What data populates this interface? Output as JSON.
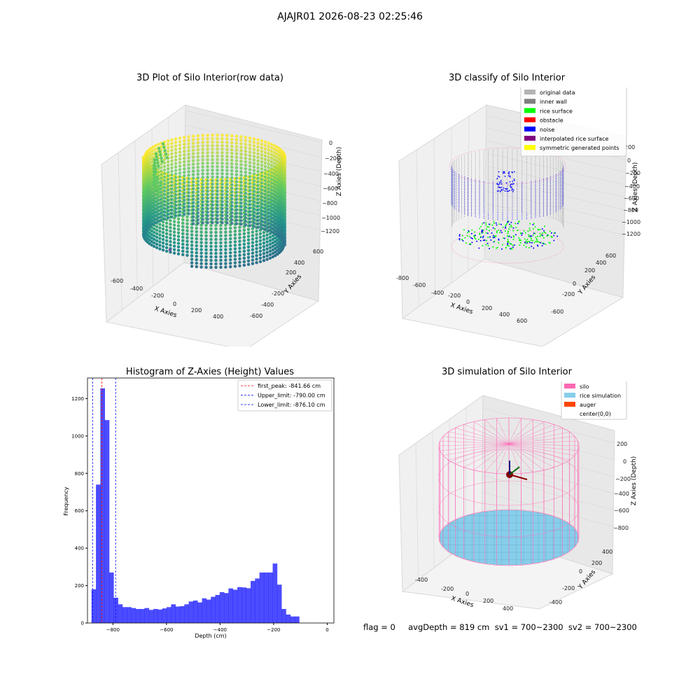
{
  "suptitle": "AJAJR01 2026-08-23 02:25:46",
  "footer": "flag = 0     avgDepth = 819 cm  sv1 = 700~2300  sv2 = 700~2300",
  "chart_data": [
    {
      "type": "scatter",
      "title": "3D Plot of Silo Interior(row data)",
      "xlabel": "X Axies",
      "ylabel": "Y Axies",
      "zlabel": "Z Axies (Depth)",
      "x_ticks": [
        "-600",
        "-400",
        "-200",
        "0",
        "200",
        "400"
      ],
      "y_ticks": [
        "-600",
        "-400",
        "-200",
        "0",
        "200",
        "400",
        "600"
      ],
      "z_ticks": [
        "0",
        "−200",
        "−400",
        "−600",
        "−800",
        "−1000",
        "−1200"
      ],
      "colormap": "viridis"
    },
    {
      "type": "scatter",
      "title": "3D classify of Silo Interior",
      "xlabel": "X Axies",
      "ylabel": "Y Axies",
      "zlabel": "Z Axies (Depth)",
      "x_ticks": [
        "-800",
        "-600",
        "-400",
        "-200",
        "0",
        "200",
        "400",
        "600"
      ],
      "y_ticks": [
        "-600",
        "-400",
        "-200",
        "0",
        "200",
        "400",
        "600"
      ],
      "z_ticks": [
        "200",
        "0",
        "−200",
        "−400",
        "−600",
        "−800",
        "−1000",
        "−1200"
      ],
      "legend_position": "top-right",
      "legend": [
        {
          "label": "original data",
          "color": "#b3b3b3"
        },
        {
          "label": "inner wall",
          "color": "#808080"
        },
        {
          "label": "rice surface",
          "color": "#00ff00"
        },
        {
          "label": "obstacle",
          "color": "#ff0000"
        },
        {
          "label": "noise",
          "color": "#0000ff"
        },
        {
          "label": "interpolated rice surface",
          "color": "#800080"
        },
        {
          "label": "symmetric generated points",
          "color": "#ffff00"
        }
      ]
    },
    {
      "type": "bar",
      "title": "Histogram of Z-Axies (Height) Values",
      "xlabel": "Depth (cm)",
      "ylabel": "Frequency",
      "xlim": [
        -895,
        25
      ],
      "ylim": [
        0,
        1310
      ],
      "x_ticks": [
        -800,
        -600,
        -400,
        -200,
        0
      ],
      "y_ticks": [
        0,
        200,
        400,
        600,
        800,
        1000,
        1200
      ],
      "bar_color": "#0000ff",
      "bin_start": -880,
      "bin_width": 16.5,
      "values": [
        180,
        740,
        1255,
        1085,
        270,
        135,
        100,
        85,
        85,
        80,
        75,
        75,
        80,
        70,
        75,
        72,
        78,
        85,
        100,
        88,
        90,
        100,
        115,
        120,
        110,
        132,
        125,
        140,
        150,
        165,
        160,
        185,
        178,
        192,
        190,
        186,
        225,
        238,
        270,
        270,
        270,
        318,
        205,
        75,
        45,
        35,
        35
      ],
      "vlines": [
        {
          "label": "first_peak: -841.66 cm",
          "x": -841.66,
          "color": "#ff0000"
        },
        {
          "label": "Upper_limit: -790.00 cm",
          "x": -790.0,
          "color": "#0000ff"
        },
        {
          "label": "Lower_limit: -876.10 cm",
          "x": -876.1,
          "color": "#0000ff"
        }
      ],
      "legend_position": "top-right"
    },
    {
      "type": "scatter",
      "title": "3D simulation of Silo Interior",
      "xlabel": "X Axies",
      "ylabel": "Y Axies",
      "zlabel": "Z Axies (Depth)",
      "x_ticks": [
        "-400",
        "-200",
        "0",
        "200",
        "400"
      ],
      "y_ticks": [
        "-400",
        "-200",
        "0",
        "200",
        "400"
      ],
      "z_ticks": [
        "200",
        "0",
        "−200",
        "−400",
        "−600",
        "−800"
      ],
      "legend_position": "top-right",
      "legend": [
        {
          "label": "silo",
          "color": "#ff69b4"
        },
        {
          "label": "rice simulation",
          "color": "#87ceeb"
        },
        {
          "label": "auger",
          "color": "#ff4500"
        },
        {
          "label": "center(0,0)",
          "color": ""
        }
      ]
    }
  ]
}
